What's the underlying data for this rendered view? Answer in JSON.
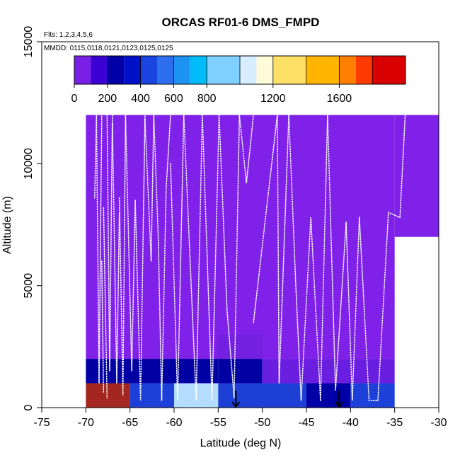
{
  "chart_data": {
    "type": "heatmap",
    "title": "ORCAS RF01-6 DMS_FMPD",
    "annotations": {
      "flights": "Flts: 1,2,3,4,5,6",
      "dates": "MMDD: 0115,0118,0121,0123,0125,0125"
    },
    "xlabel": "Latitude (deg N)",
    "ylabel": "Altitude (m)",
    "xlim": [
      -75,
      -30
    ],
    "ylim": [
      0,
      15000
    ],
    "xticks": [
      -75,
      -70,
      -65,
      -60,
      -55,
      -50,
      -45,
      -40,
      -35,
      -30
    ],
    "yticks": [
      0,
      5000,
      10000,
      15000
    ],
    "colorbar": {
      "range": [
        0,
        2000
      ],
      "bin_edges": [
        0,
        100,
        200,
        300,
        400,
        500,
        600,
        700,
        800,
        1000,
        1100,
        1200,
        1400,
        1600,
        1700,
        1800,
        2000
      ],
      "colors": [
        "#7a1fe6",
        "#3a00d4",
        "#0000a6",
        "#0010c8",
        "#1a44e0",
        "#2e6ff0",
        "#1c93f2",
        "#00bdfa",
        "#7fd0ff",
        "#d6eeff",
        "#fffbd8",
        "#ffe066",
        "#ffb400",
        "#ff7f00",
        "#ff3a00",
        "#d90000",
        "#a41a1a"
      ],
      "tick_values": [
        0,
        200,
        400,
        600,
        800,
        1200,
        1600
      ],
      "tick_labels": [
        "0",
        "200",
        "400",
        "600",
        "800",
        "1200",
        "1600"
      ]
    },
    "cells": [
      {
        "lat": [
          -70,
          -35
        ],
        "alt": [
          2000,
          12000
        ],
        "value": 30,
        "color": "#7f21e9"
      },
      {
        "lat": [
          -35,
          -30
        ],
        "alt": [
          7000,
          12000
        ],
        "value": 30,
        "color": "#7f21e9"
      },
      {
        "lat": [
          -70,
          -55
        ],
        "alt": [
          1000,
          2000
        ],
        "value": 220,
        "color": "#0000a3"
      },
      {
        "lat": [
          -55,
          -50
        ],
        "alt": [
          2000,
          3000
        ],
        "value": 60,
        "color": "#7320e0"
      },
      {
        "lat": [
          -55,
          -50
        ],
        "alt": [
          1000,
          2000
        ],
        "value": 220,
        "color": "#0000a3"
      },
      {
        "lat": [
          -50,
          -35
        ],
        "alt": [
          1000,
          2000
        ],
        "value": 80,
        "color": "#6a1ee0"
      },
      {
        "lat": [
          -70,
          -65
        ],
        "alt": [
          0,
          1000
        ],
        "value": 1900,
        "color": "#a32620"
      },
      {
        "lat": [
          -65,
          -60
        ],
        "alt": [
          0,
          1000
        ],
        "value": 480,
        "color": "#1c40d8"
      },
      {
        "lat": [
          -60,
          -55
        ],
        "alt": [
          0,
          1000
        ],
        "value": 900,
        "color": "#b4dcff"
      },
      {
        "lat": [
          -55,
          -45
        ],
        "alt": [
          0,
          1000
        ],
        "value": 400,
        "color": "#1e3fd6"
      },
      {
        "lat": [
          -45,
          -40
        ],
        "alt": [
          0,
          1000
        ],
        "value": 250,
        "color": "#0000a6"
      },
      {
        "lat": [
          -40,
          -35
        ],
        "alt": [
          0,
          1000
        ],
        "value": 480,
        "color": "#1c40d8"
      }
    ],
    "markers": [
      {
        "type": "arrow-down",
        "lat": -53,
        "alt_top": 700,
        "alt_bottom": 0
      },
      {
        "type": "arrow-down",
        "lat": -41.3,
        "alt_top": 700,
        "alt_bottom": 0
      }
    ],
    "flight_tracks": {
      "style": "white dotted",
      "segments": [
        [
          [
            -69.0,
            8600
          ],
          [
            -68.8,
            12000
          ]
        ],
        [
          [
            -68.8,
            12000
          ],
          [
            -68.5,
            1000
          ],
          [
            -68.2,
            12000
          ]
        ],
        [
          [
            -68.2,
            6000
          ],
          [
            -68.0,
            600
          ]
        ],
        [
          [
            -68.0,
            8200
          ],
          [
            -67.6,
            400
          ]
        ],
        [
          [
            -67.6,
            12000
          ],
          [
            -67.3,
            1500
          ],
          [
            -67.0,
            11700
          ]
        ],
        [
          [
            -67.0,
            12000
          ],
          [
            -66.5,
            1000
          ],
          [
            -66.2,
            8000
          ]
        ],
        [
          [
            -66.2,
            8600
          ],
          [
            -65.8,
            500
          ],
          [
            -65.5,
            12000
          ]
        ],
        [
          [
            -65.5,
            12000
          ],
          [
            -64.8,
            1500
          ],
          [
            -64.4,
            8500
          ]
        ],
        [
          [
            -64.4,
            8500
          ],
          [
            -63.8,
            300
          ],
          [
            -63.3,
            12000
          ]
        ],
        [
          [
            -63.3,
            11800
          ],
          [
            -62.6,
            6000
          ],
          [
            -62.3,
            12000
          ]
        ],
        [
          [
            -62.3,
            12000
          ],
          [
            -61.8,
            7000
          ],
          [
            -61.4,
            300
          ]
        ],
        [
          [
            -61.4,
            300
          ],
          [
            -60.9,
            9000
          ],
          [
            -60.4,
            12000
          ]
        ],
        [
          [
            -60.4,
            10000
          ],
          [
            -59.6,
            300
          ],
          [
            -58.9,
            12000
          ]
        ],
        [
          [
            -58.9,
            12000
          ],
          [
            -57.5,
            300
          ],
          [
            -56.8,
            12000
          ]
        ],
        [
          [
            -56.8,
            12000
          ],
          [
            -55.7,
            300
          ],
          [
            -54.9,
            12000
          ]
        ],
        [
          [
            -54.9,
            12000
          ],
          [
            -54.0,
            4000
          ],
          [
            -53.2,
            400
          ]
        ],
        [
          [
            -53.2,
            400
          ],
          [
            -52.6,
            12000
          ]
        ],
        [
          [
            -52.6,
            12000
          ],
          [
            -51.8,
            9200
          ],
          [
            -51.0,
            12000
          ]
        ],
        [
          [
            -51.0,
            3500
          ],
          [
            -48.3,
            12000
          ]
        ],
        [
          [
            -48.3,
            12000
          ],
          [
            -48.1,
            1000
          ],
          [
            -47.0,
            12000
          ]
        ],
        [
          [
            -47.0,
            12000
          ],
          [
            -46.2,
            5000
          ],
          [
            -45.6,
            300
          ]
        ],
        [
          [
            -45.6,
            300
          ],
          [
            -44.5,
            7800
          ],
          [
            -43.4,
            300
          ]
        ],
        [
          [
            -43.4,
            300
          ],
          [
            -42.6,
            12000
          ]
        ],
        [
          [
            -42.6,
            12000
          ],
          [
            -41.7,
            700
          ],
          [
            -40.5,
            7600
          ]
        ],
        [
          [
            -40.5,
            7600
          ],
          [
            -39.8,
            300
          ],
          [
            -39.0,
            7800
          ]
        ],
        [
          [
            -39.0,
            7800
          ],
          [
            -37.9,
            300
          ],
          [
            -36.9,
            300
          ]
        ],
        [
          [
            -36.9,
            300
          ],
          [
            -35.7,
            8000
          ],
          [
            -34.4,
            7800
          ]
        ],
        [
          [
            -34.4,
            7800
          ],
          [
            -33.8,
            12000
          ]
        ]
      ]
    }
  }
}
